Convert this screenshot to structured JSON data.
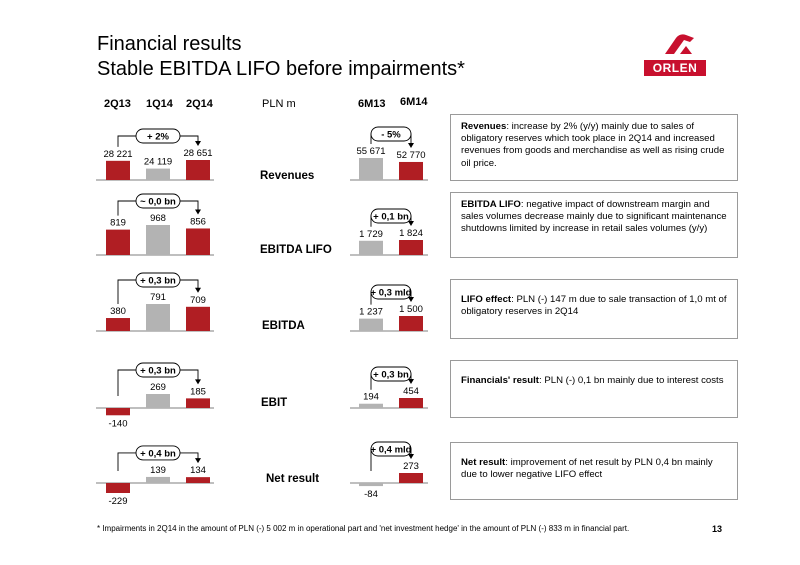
{
  "header": {
    "title_line1": "Financial results",
    "title_line2": "Stable EBITDA LIFO before impairments*",
    "logo_text": "ORLEN"
  },
  "columns": {
    "quarters": [
      "2Q13",
      "1Q14",
      "2Q14"
    ],
    "unit": "PLN m",
    "halves": [
      "6M13",
      "6M14"
    ]
  },
  "colors": {
    "red": "#b01e23",
    "grey": "#b3b3b3"
  },
  "chart_data": [
    {
      "type": "bar",
      "name": "Revenues",
      "categories": [
        "2Q13",
        "1Q14",
        "2Q14"
      ],
      "values": [
        28221,
        24119,
        28651
      ],
      "labels": [
        "28 221",
        "24 119",
        "28 651"
      ],
      "change": "+ 2%"
    },
    {
      "type": "bar",
      "name": "EBITDA LIFO",
      "categories": [
        "2Q13",
        "1Q14",
        "2Q14"
      ],
      "values": [
        819,
        968,
        856
      ],
      "labels": [
        "819",
        "968",
        "856"
      ],
      "change": "~ 0,0 bn"
    },
    {
      "type": "bar",
      "name": "EBITDA",
      "categories": [
        "2Q13",
        "1Q14",
        "2Q14"
      ],
      "values": [
        380,
        791,
        709
      ],
      "labels": [
        "380",
        "791",
        "709"
      ],
      "change": "+ 0,3 bn"
    },
    {
      "type": "bar",
      "name": "EBIT",
      "categories": [
        "2Q13",
        "1Q14",
        "2Q14"
      ],
      "values": [
        -140,
        269,
        185
      ],
      "labels": [
        "-140",
        "269",
        "185"
      ],
      "change": "+ 0,3 bn"
    },
    {
      "type": "bar",
      "name": "Net result",
      "categories": [
        "2Q13",
        "1Q14",
        "2Q14"
      ],
      "values": [
        -229,
        139,
        134
      ],
      "labels": [
        "-229",
        "139",
        "134"
      ],
      "change": "+ 0,4 bn"
    },
    {
      "type": "bar",
      "name": "Revenues",
      "categories": [
        "6M13",
        "6M14"
      ],
      "values": [
        55671,
        52770
      ],
      "labels": [
        "55 671",
        "52 770"
      ],
      "change": "- 5%"
    },
    {
      "type": "bar",
      "name": "EBITDA LIFO",
      "categories": [
        "6M13",
        "6M14"
      ],
      "values": [
        1729,
        1824
      ],
      "labels": [
        "1 729",
        "1 824"
      ],
      "change": "+ 0,1 bn"
    },
    {
      "type": "bar",
      "name": "EBITDA",
      "categories": [
        "6M13",
        "6M14"
      ],
      "values": [
        1237,
        1500
      ],
      "labels": [
        "1 237",
        "1 500"
      ],
      "change": "+ 0,3 mld"
    },
    {
      "type": "bar",
      "name": "EBIT",
      "categories": [
        "6M13",
        "6M14"
      ],
      "values": [
        194,
        454
      ],
      "labels": [
        "194",
        "454"
      ],
      "change": "+ 0,3 bn"
    },
    {
      "type": "bar",
      "name": "Net result",
      "categories": [
        "6M13",
        "6M14"
      ],
      "values": [
        -84,
        273
      ],
      "labels": [
        "-84",
        "273"
      ],
      "change": "+ 0,4 mld"
    }
  ],
  "row_labels": [
    "Revenues",
    "EBITDA LIFO",
    "EBITDA",
    "EBIT",
    "Net result"
  ],
  "comments": [
    {
      "head": "Revenues",
      "text": ": increase by 2% (y/y)  mainly due to sales of obligatory reserves  which took place in 2Q14 and increased revenues from goods and merchandise as well as rising crude oil price."
    },
    {
      "head": "EBITDA LIFO",
      "text": ": negative impact of  downstream margin and sales volumes decrease  mainly  due to significant maintenance shutdowns limited by increase  in retail sales volumes (y/y)"
    },
    {
      "head": "LIFO effect",
      "text": ": PLN (-) 147 m due to sale transaction of 1,0 mt of obligatory reserves in 2Q14"
    },
    {
      "head": "Financials' result",
      "text": ": PLN (-) 0,1 bn mainly due to interest costs"
    },
    {
      "head": "Net result",
      "text": ": improvement of net result by PLN 0,4 bn mainly due to lower negative LIFO effect"
    }
  ],
  "footnote": "* Impairments in 2Q14 in the amount of PLN (-) 5 002 m in operational part and 'net investment hedge' in the amount of PLN (-) 833 m in financial part.",
  "page_number": "13"
}
